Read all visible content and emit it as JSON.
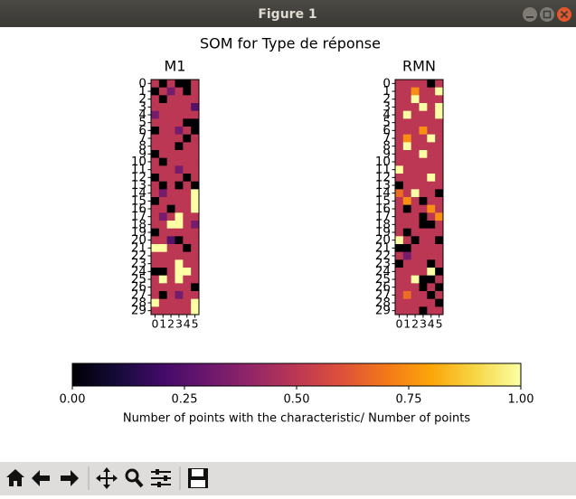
{
  "window": {
    "title": "Figure 1"
  },
  "figure": {
    "title": "SOM for Type de réponse",
    "colorbar": {
      "label": "Number of points with the characteristic/ Number of points",
      "colormap": "inferno",
      "xlim": [
        0,
        1
      ],
      "xticks": [
        {
          "value": 0,
          "label": "0.00"
        },
        {
          "value": 0.25,
          "label": "0.25"
        },
        {
          "value": 0.5,
          "label": "0.50"
        },
        {
          "value": 0.75,
          "label": "0.75"
        },
        {
          "value": 1,
          "label": "1.00"
        }
      ]
    }
  },
  "chart_data": [
    {
      "type": "heatmap",
      "title": "M1",
      "xticks": [
        0,
        1,
        2,
        3,
        4,
        5
      ],
      "yticks": [
        0,
        1,
        2,
        3,
        4,
        5,
        6,
        7,
        8,
        9,
        10,
        11,
        12,
        13,
        14,
        15,
        16,
        17,
        18,
        19,
        20,
        21,
        22,
        23,
        24,
        25,
        26,
        27,
        28,
        29
      ],
      "values": [
        [
          0.5,
          0,
          0.5,
          0,
          0,
          0.5
        ],
        [
          0,
          0.5,
          0.33,
          0.5,
          0,
          0.5
        ],
        [
          0.5,
          0,
          0.5,
          0.5,
          0.5,
          0.5
        ],
        [
          0.5,
          0.5,
          0.5,
          0.5,
          0.5,
          0.25
        ],
        [
          0.33,
          0.5,
          0.5,
          0.5,
          0.5,
          0.5
        ],
        [
          0.5,
          0.5,
          0.5,
          0.5,
          0,
          0
        ],
        [
          0,
          0.5,
          0.5,
          0.33,
          0.5,
          0
        ],
        [
          0.5,
          0.5,
          0.5,
          0.5,
          0,
          0.5
        ],
        [
          0.5,
          0.5,
          0.5,
          0,
          0.5,
          0.5
        ],
        [
          0,
          0.5,
          0.5,
          0.5,
          0.5,
          0.5
        ],
        [
          0.5,
          0,
          0.5,
          0.5,
          0.5,
          0.5
        ],
        [
          0.5,
          0.5,
          0.5,
          0.33,
          0.5,
          0.5
        ],
        [
          0,
          0.5,
          0.5,
          0.5,
          0,
          0.5
        ],
        [
          0.5,
          0,
          0.5,
          0,
          0.5,
          0
        ],
        [
          0.5,
          0.33,
          0.5,
          0.5,
          0.5,
          1
        ],
        [
          0,
          0.5,
          0.5,
          0.5,
          0.5,
          1
        ],
        [
          0.5,
          0.5,
          0,
          0.5,
          0.5,
          1
        ],
        [
          0.5,
          0.33,
          0.5,
          1,
          0.5,
          0.5
        ],
        [
          0.5,
          0.5,
          1,
          1,
          0.5,
          0.33
        ],
        [
          0,
          0.5,
          0.5,
          0.5,
          0.5,
          0.5
        ],
        [
          0.5,
          0.5,
          0.25,
          0,
          0.5,
          0.5
        ],
        [
          1,
          1,
          0.5,
          0.5,
          0,
          0.5
        ],
        [
          0.5,
          0.5,
          0.5,
          0.5,
          0.5,
          0.5
        ],
        [
          0.5,
          0.5,
          0.5,
          1,
          0.5,
          0.5
        ],
        [
          0,
          0,
          0.5,
          1,
          1,
          0.5
        ],
        [
          0.5,
          1,
          0.5,
          1,
          0.5,
          0.5
        ],
        [
          0.5,
          0.5,
          0.5,
          0.5,
          0.5,
          0
        ],
        [
          0.5,
          0,
          0.5,
          0.33,
          0.5,
          0.5
        ],
        [
          1,
          0.5,
          0.5,
          0.5,
          0.5,
          1
        ],
        [
          0.5,
          0.5,
          0.5,
          0.5,
          0.5,
          1
        ]
      ]
    },
    {
      "type": "heatmap",
      "title": "RMN",
      "xticks": [
        0,
        1,
        2,
        3,
        4,
        5
      ],
      "yticks": [
        0,
        1,
        2,
        3,
        4,
        5,
        6,
        7,
        8,
        9,
        10,
        11,
        12,
        13,
        14,
        15,
        16,
        17,
        18,
        19,
        20,
        21,
        22,
        23,
        24,
        25,
        26,
        27,
        28,
        29
      ],
      "values": [
        [
          0.5,
          0.5,
          0.5,
          0.5,
          0,
          0.5
        ],
        [
          0.5,
          0.5,
          0.75,
          0.5,
          0.5,
          1
        ],
        [
          0.5,
          0.5,
          1,
          0.5,
          0.5,
          0.5
        ],
        [
          0.5,
          0.5,
          0.5,
          1,
          0.5,
          1
        ],
        [
          0.5,
          1,
          0.5,
          0.5,
          0.5,
          1
        ],
        [
          0.5,
          0.5,
          0.5,
          0.5,
          0.5,
          0.5
        ],
        [
          0.5,
          0.5,
          0.5,
          0.75,
          0.5,
          0.5
        ],
        [
          0.5,
          0.75,
          0.5,
          0.5,
          1,
          0.5
        ],
        [
          0.5,
          1,
          0.5,
          0.5,
          0.5,
          0.5
        ],
        [
          0.5,
          0.5,
          0.5,
          1,
          0.5,
          0.5
        ],
        [
          0.5,
          0.5,
          0.5,
          0.5,
          0.5,
          0.5
        ],
        [
          1,
          0.5,
          0.5,
          0.5,
          0.5,
          0.5
        ],
        [
          0.5,
          0.5,
          0.5,
          0.5,
          1,
          0.5
        ],
        [
          0,
          0.5,
          0.5,
          0.5,
          0.5,
          0.5
        ],
        [
          0.67,
          0.5,
          1,
          0.5,
          0.5,
          0
        ],
        [
          0.5,
          0.75,
          0.5,
          0,
          0.5,
          0.5
        ],
        [
          0.5,
          0,
          0.5,
          0.5,
          0.75,
          0.5
        ],
        [
          0.5,
          0.5,
          0.5,
          0,
          0.5,
          0.75
        ],
        [
          0.5,
          0.5,
          0.5,
          0,
          0,
          0.5
        ],
        [
          0.5,
          0,
          0.5,
          0.5,
          0.5,
          0.5
        ],
        [
          1,
          0.5,
          0,
          0.5,
          0.5,
          0
        ],
        [
          0,
          0,
          0.5,
          0.5,
          0.5,
          0.5
        ],
        [
          0.5,
          0.33,
          0.5,
          0.5,
          0.5,
          0.5
        ],
        [
          0,
          0.5,
          0.5,
          0.5,
          0,
          0.5
        ],
        [
          0.5,
          0.5,
          0.5,
          0.5,
          1,
          0
        ],
        [
          0.5,
          0.5,
          1,
          0,
          0,
          0.5
        ],
        [
          0.5,
          0.5,
          0.5,
          0,
          0.5,
          0
        ],
        [
          0.5,
          0.67,
          0.5,
          0.5,
          0,
          0.5
        ],
        [
          0.5,
          0.5,
          0.5,
          0.5,
          0.5,
          0
        ],
        [
          0.5,
          0.5,
          0.5,
          0,
          0.5,
          0.5
        ]
      ]
    }
  ]
}
